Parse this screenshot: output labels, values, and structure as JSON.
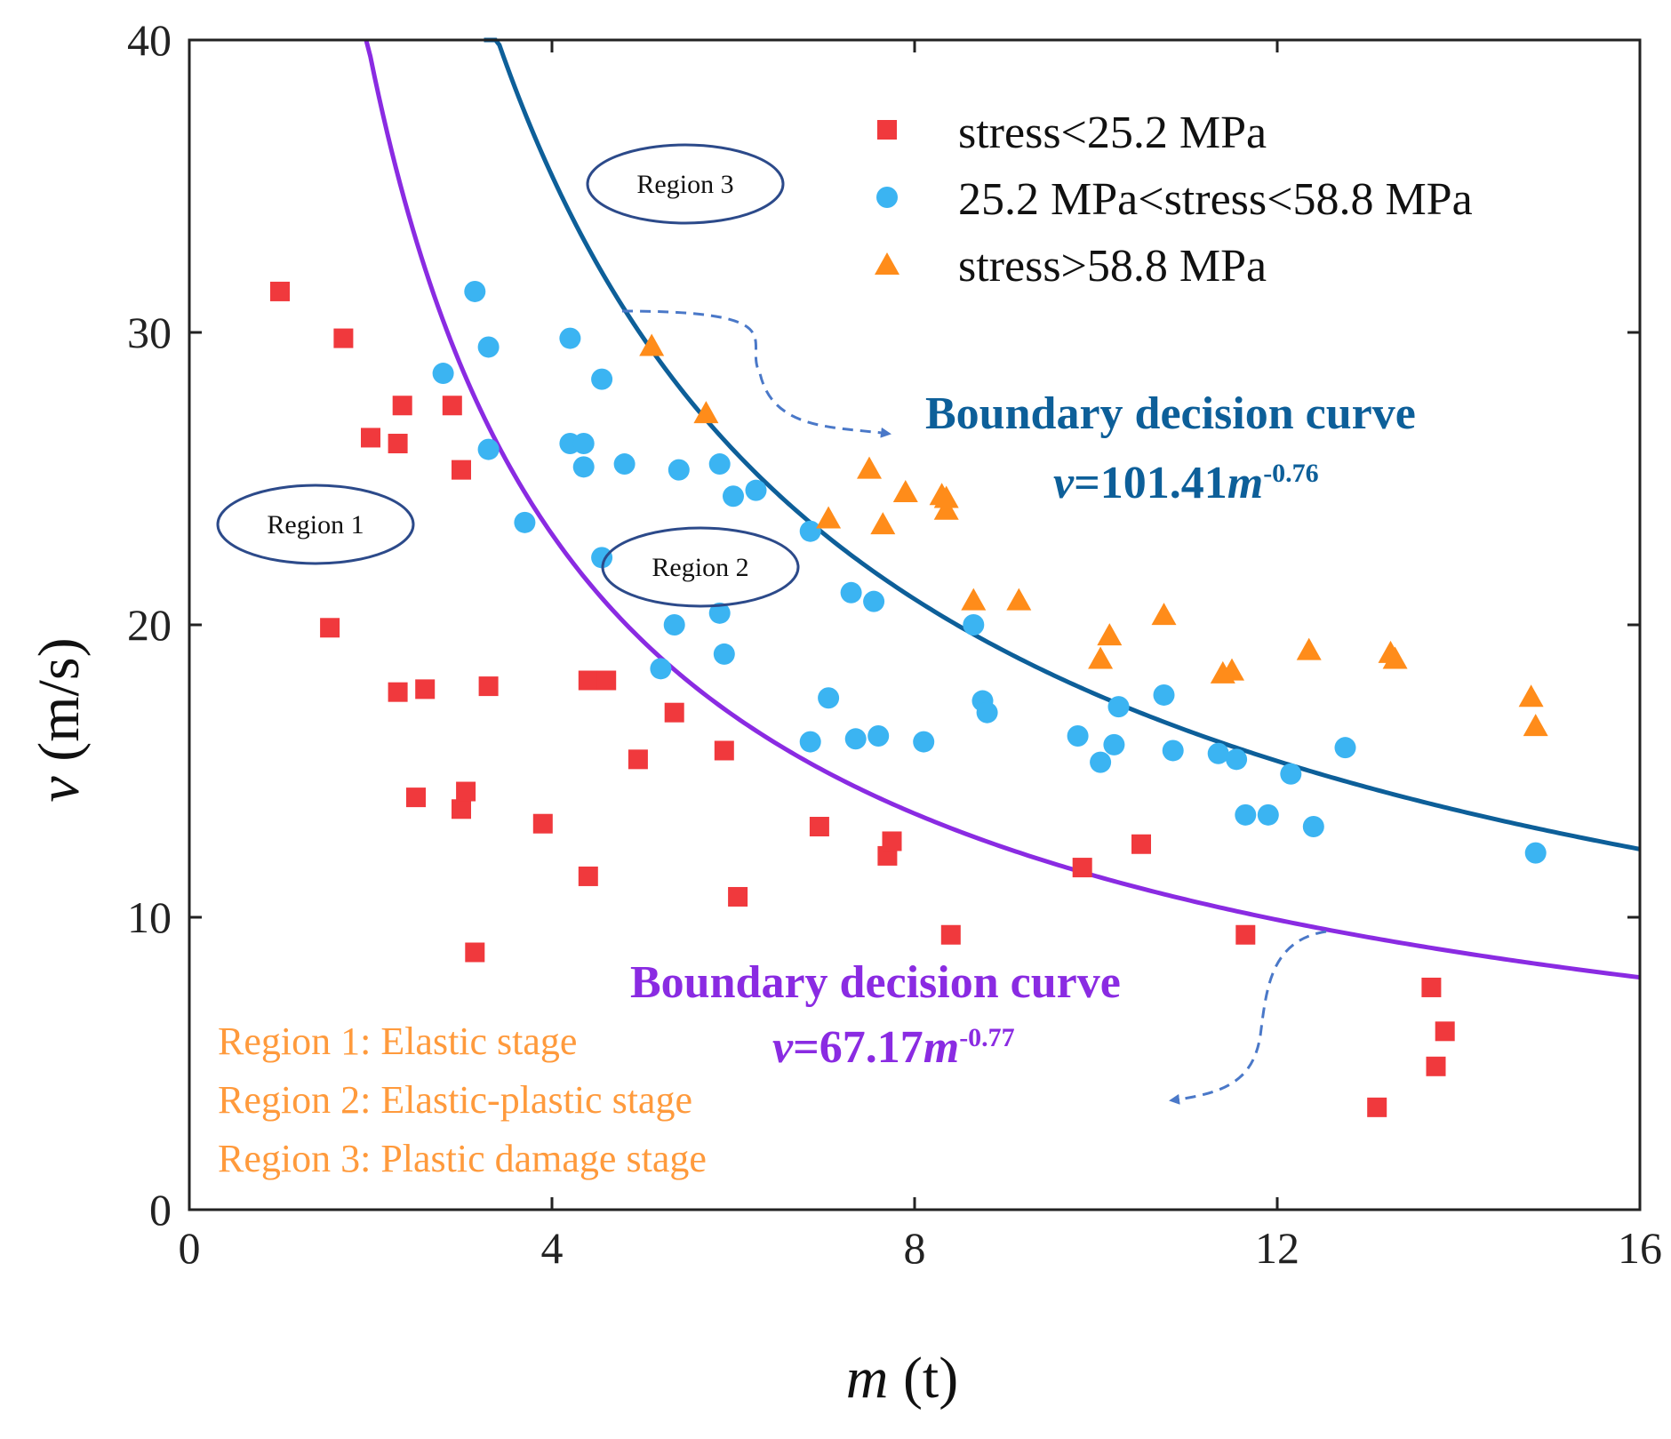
{
  "colors": {
    "red": "#f0393d",
    "blue": "#3bb4f2",
    "orange": "#ff8c1a",
    "curve_upper": "#0d5f99",
    "curve_lower": "#8a2be2",
    "region_ellipse": "#2c4a8a",
    "note": "#ff9a3c",
    "arrow": "#4a78c8"
  },
  "chart_data": {
    "type": "scatter",
    "xlabel_italic": "m",
    "xlabel_unit": " (t)",
    "ylabel_italic": "v",
    "ylabel_unit": " (m/s)",
    "xlim": [
      0,
      16
    ],
    "ylim": [
      0,
      40
    ],
    "x_ticks": [
      0,
      4,
      8,
      12,
      16
    ],
    "y_ticks": [
      0,
      10,
      20,
      30,
      40
    ],
    "legend": [
      {
        "label": "stress<25.2 MPa",
        "marker": "square",
        "color": "#f0393d"
      },
      {
        "label": "25.2 MPa<stress<58.8 MPa",
        "marker": "circle",
        "color": "#3bb4f2"
      },
      {
        "label": "stress>58.8 MPa",
        "marker": "triangle",
        "color": "#ff8c1a"
      }
    ],
    "series": [
      {
        "name": "stress<25.2 MPa",
        "marker": "square",
        "points": [
          [
            1.0,
            31.4
          ],
          [
            1.7,
            29.8
          ],
          [
            2.0,
            26.4
          ],
          [
            2.3,
            26.2
          ],
          [
            2.35,
            27.5
          ],
          [
            2.9,
            27.5
          ],
          [
            3.0,
            25.3
          ],
          [
            1.55,
            19.9
          ],
          [
            2.3,
            17.7
          ],
          [
            2.6,
            17.8
          ],
          [
            3.3,
            17.9
          ],
          [
            4.4,
            18.1
          ],
          [
            4.6,
            18.1
          ],
          [
            2.5,
            14.1
          ],
          [
            3.0,
            13.7
          ],
          [
            3.05,
            14.3
          ],
          [
            3.9,
            13.2
          ],
          [
            4.4,
            11.4
          ],
          [
            3.15,
            8.8
          ],
          [
            4.95,
            15.4
          ],
          [
            5.35,
            17.0
          ],
          [
            5.9,
            15.7
          ],
          [
            6.05,
            10.7
          ],
          [
            6.95,
            13.1
          ],
          [
            7.7,
            12.1
          ],
          [
            7.75,
            12.6
          ],
          [
            8.4,
            9.4
          ],
          [
            9.85,
            11.7
          ],
          [
            10.5,
            12.5
          ],
          [
            11.65,
            9.4
          ],
          [
            13.1,
            3.5
          ],
          [
            13.7,
            7.6
          ],
          [
            13.75,
            4.9
          ],
          [
            13.85,
            6.1
          ]
        ]
      },
      {
        "name": "25.2 MPa<stress<58.8 MPa",
        "marker": "circle",
        "points": [
          [
            2.8,
            28.6
          ],
          [
            3.15,
            31.4
          ],
          [
            3.3,
            29.5
          ],
          [
            3.3,
            26.0
          ],
          [
            3.7,
            23.5
          ],
          [
            4.2,
            29.8
          ],
          [
            4.2,
            26.2
          ],
          [
            4.35,
            26.2
          ],
          [
            4.35,
            25.4
          ],
          [
            4.55,
            28.4
          ],
          [
            4.55,
            22.3
          ],
          [
            4.8,
            25.5
          ],
          [
            5.2,
            18.5
          ],
          [
            5.35,
            20.0
          ],
          [
            5.4,
            25.3
          ],
          [
            5.85,
            25.5
          ],
          [
            5.9,
            19.0
          ],
          [
            5.85,
            20.4
          ],
          [
            6.0,
            24.4
          ],
          [
            6.25,
            24.6
          ],
          [
            6.85,
            23.2
          ],
          [
            6.85,
            16.0
          ],
          [
            7.05,
            17.5
          ],
          [
            7.3,
            21.1
          ],
          [
            7.35,
            16.1
          ],
          [
            7.55,
            20.8
          ],
          [
            7.6,
            16.2
          ],
          [
            8.1,
            16.0
          ],
          [
            8.65,
            20.0
          ],
          [
            8.75,
            17.4
          ],
          [
            8.8,
            17.0
          ],
          [
            9.8,
            16.2
          ],
          [
            10.05,
            15.3
          ],
          [
            10.2,
            15.9
          ],
          [
            10.25,
            17.2
          ],
          [
            10.75,
            17.6
          ],
          [
            10.85,
            15.7
          ],
          [
            11.35,
            15.6
          ],
          [
            11.55,
            15.4
          ],
          [
            11.65,
            13.5
          ],
          [
            11.9,
            13.5
          ],
          [
            12.15,
            14.9
          ],
          [
            12.4,
            13.1
          ],
          [
            12.75,
            15.8
          ],
          [
            14.85,
            12.2
          ]
        ]
      },
      {
        "name": "stress>58.8 MPa",
        "marker": "triangle",
        "points": [
          [
            5.1,
            29.5
          ],
          [
            5.7,
            27.2
          ],
          [
            7.05,
            23.6
          ],
          [
            7.5,
            25.3
          ],
          [
            7.65,
            23.4
          ],
          [
            7.9,
            24.5
          ],
          [
            8.3,
            24.4
          ],
          [
            8.35,
            24.3
          ],
          [
            8.35,
            23.9
          ],
          [
            8.65,
            20.8
          ],
          [
            9.15,
            20.8
          ],
          [
            10.05,
            18.8
          ],
          [
            10.15,
            19.6
          ],
          [
            10.75,
            20.3
          ],
          [
            11.4,
            18.3
          ],
          [
            11.5,
            18.4
          ],
          [
            12.35,
            19.1
          ],
          [
            13.25,
            19.0
          ],
          [
            13.3,
            18.8
          ],
          [
            14.8,
            17.5
          ],
          [
            14.85,
            16.5
          ]
        ]
      }
    ],
    "curves": [
      {
        "name": "upper",
        "a": 101.41,
        "b": -0.76,
        "x_from": 3.25,
        "x_to": 16
      },
      {
        "name": "lower",
        "a": 67.17,
        "b": -0.77,
        "x_from": 1.95,
        "x_to": 16
      }
    ],
    "annotations": {
      "upper_title": "Boundary decision curve",
      "upper_eq_v": "v",
      "upper_eq_mid": "=101.41",
      "upper_eq_m": "m",
      "upper_eq_exp": "-0.76",
      "lower_title": "Boundary decision curve",
      "lower_eq_v": "v",
      "lower_eq_mid": "=67.17",
      "lower_eq_m": "m",
      "lower_eq_exp": "-0.77",
      "region1": "Region 1",
      "region2": "Region 2",
      "region3": "Region 3",
      "note1": "Region 1: Elastic stage",
      "note2": "Region 2: Elastic-plastic stage",
      "note3": "Region 3: Plastic damage stage"
    }
  }
}
